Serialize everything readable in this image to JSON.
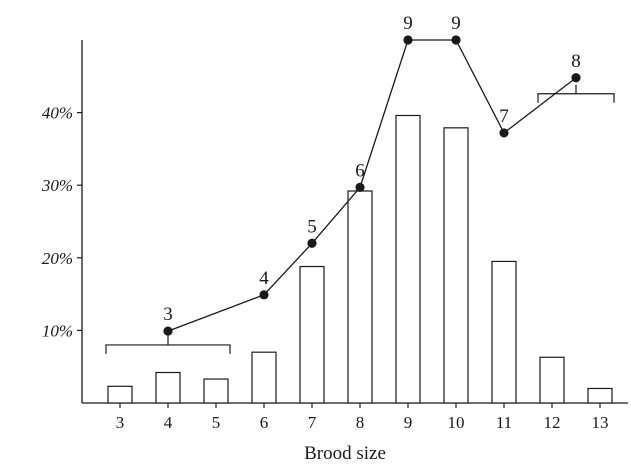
{
  "chart_data": {
    "type": "bar",
    "title": "",
    "xlabel": "Brood size",
    "ylabel": "",
    "categories": [
      "3",
      "4",
      "5",
      "6",
      "7",
      "8",
      "9",
      "10",
      "11",
      "12",
      "13"
    ],
    "x": [
      3,
      4,
      5,
      6,
      7,
      8,
      9,
      10,
      11,
      12,
      13
    ],
    "bar_values": [
      2.3,
      4.2,
      3.3,
      7.0,
      18.8,
      29.2,
      39.6,
      37.9,
      19.5,
      6.3,
      2.0
    ],
    "ylim": [
      0,
      50
    ],
    "y_ticks": [
      10,
      20,
      30,
      40
    ],
    "y_tick_labels": [
      "10%",
      "20%",
      "30%",
      "40%"
    ],
    "grid": false,
    "line": {
      "points": [
        {
          "x": 4,
          "y": 9.9,
          "label": "3"
        },
        {
          "x": 6,
          "y": 14.9,
          "label": "4"
        },
        {
          "x": 7,
          "y": 22.0,
          "label": "5"
        },
        {
          "x": 8,
          "y": 29.7,
          "label": "6"
        },
        {
          "x": 9,
          "y": 50.0,
          "label": "9"
        },
        {
          "x": 10,
          "y": 50.0,
          "label": "9"
        },
        {
          "x": 11,
          "y": 37.2,
          "label": "7"
        },
        {
          "x": 12.5,
          "y": 44.8,
          "label": "8"
        }
      ]
    },
    "brackets": [
      {
        "x_start": 3,
        "x_end": 5,
        "stem_x": 4,
        "y": 8.0
      },
      {
        "x_start": 12,
        "x_end": 13,
        "stem_x": 12.5,
        "y": 42.6
      }
    ]
  }
}
